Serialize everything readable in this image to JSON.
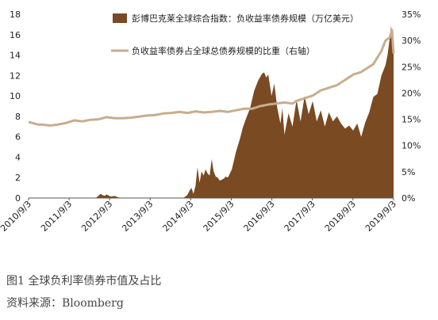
{
  "figure": {
    "title": "图1  全球负利率债券市值及占比",
    "source": "资料来源：Bloomberg"
  },
  "chart_data": {
    "type": "area",
    "title": "",
    "xlabel": "",
    "ylabel": "",
    "ylabel_right": "",
    "x_ticks": [
      "2010/9/3",
      "2011/9/3",
      "2012/9/3",
      "2013/9/3",
      "2014/9/3",
      "2015/9/3",
      "2016/9/3",
      "2017/9/3",
      "2018/9/3",
      "2019/9/3"
    ],
    "y_left": {
      "lim": [
        0,
        18
      ],
      "ticks": [
        "0",
        "2",
        "4",
        "6",
        "8",
        "10",
        "12",
        "14",
        "16",
        "18"
      ]
    },
    "y_right": {
      "lim": [
        0,
        35
      ],
      "ticks": [
        "0%",
        "5%",
        "10%",
        "15%",
        "20%",
        "25%",
        "30%",
        "35%"
      ]
    },
    "grid": false,
    "legend_position": "top",
    "series": [
      {
        "name": "彭博巴克莱全球综合指数：负收益率债券规模（万亿美元）",
        "type": "area",
        "axis": "left",
        "color": "#7a4a22",
        "x": [
          2010.67,
          2011.5,
          2012.0,
          2012.3,
          2012.35,
          2012.45,
          2012.5,
          2012.55,
          2012.6,
          2012.7,
          2012.8,
          2012.9,
          2013.0,
          2013.5,
          2014.0,
          2014.5,
          2014.6,
          2014.65,
          2014.7,
          2014.75,
          2014.8,
          2014.85,
          2014.9,
          2014.95,
          2015.0,
          2015.05,
          2015.1,
          2015.15,
          2015.2,
          2015.25,
          2015.3,
          2015.35,
          2015.4,
          2015.45,
          2015.5,
          2015.55,
          2015.6,
          2015.7,
          2015.8,
          2015.9,
          2015.97,
          2016.05,
          2016.15,
          2016.25,
          2016.35,
          2016.45,
          2016.5,
          2016.55,
          2016.6,
          2016.68,
          2016.75,
          2016.82,
          2016.9,
          2016.95,
          2017.0,
          2017.1,
          2017.2,
          2017.3,
          2017.4,
          2017.5,
          2017.6,
          2017.7,
          2017.8,
          2017.9,
          2018.0,
          2018.1,
          2018.2,
          2018.3,
          2018.4,
          2018.5,
          2018.6,
          2018.7,
          2018.8,
          2018.9,
          2019.0,
          2019.1,
          2019.2,
          2019.3,
          2019.4,
          2019.5,
          2019.55,
          2019.6,
          2019.64,
          2019.66,
          2019.7
        ],
        "values": [
          0,
          0,
          0,
          0,
          0.05,
          0.4,
          0.3,
          0.2,
          0.35,
          0.15,
          0.2,
          0.05,
          0,
          0,
          0,
          0,
          0.3,
          0.7,
          1.0,
          0.4,
          1.2,
          3.0,
          1.5,
          2.6,
          2.2,
          2.8,
          2.4,
          2.2,
          3.8,
          2.6,
          2.1,
          2.0,
          1.7,
          1.8,
          1.9,
          2.1,
          2.0,
          2.8,
          4.5,
          5.8,
          6.9,
          7.8,
          8.8,
          10.5,
          11.5,
          12.2,
          12.3,
          11.8,
          12.1,
          10.0,
          11.2,
          8.9,
          7.3,
          8.8,
          6.2,
          8.3,
          7.0,
          9.6,
          7.5,
          10.0,
          8.2,
          9.5,
          7.5,
          8.6,
          7.0,
          8.4,
          7.5,
          8.0,
          7.3,
          6.8,
          7.1,
          6.6,
          7.3,
          6.0,
          7.4,
          8.4,
          9.9,
          10.2,
          12.0,
          13.0,
          14.0,
          15.5,
          16.9,
          16.0,
          15.5
        ]
      },
      {
        "name": "负收益率债券占全球总债券规模的比重（右轴）",
        "type": "line",
        "axis": "right",
        "color": "#c8ad8d",
        "x": [
          2010.67,
          2010.9,
          2011.0,
          2011.2,
          2011.4,
          2011.6,
          2011.8,
          2012.0,
          2012.2,
          2012.4,
          2012.6,
          2012.8,
          2013.0,
          2013.2,
          2013.4,
          2013.6,
          2013.8,
          2014.0,
          2014.2,
          2014.4,
          2014.6,
          2014.8,
          2015.0,
          2015.2,
          2015.4,
          2015.6,
          2015.8,
          2016.0,
          2016.2,
          2016.4,
          2016.6,
          2016.8,
          2017.0,
          2017.2,
          2017.3,
          2017.5,
          2017.7,
          2017.9,
          2018.1,
          2018.3,
          2018.5,
          2018.7,
          2018.9,
          2019.0,
          2019.2,
          2019.4,
          2019.5,
          2019.6,
          2019.66,
          2019.7
        ],
        "values": [
          14.5,
          14.0,
          14.0,
          13.8,
          14.0,
          14.3,
          14.8,
          14.6,
          14.9,
          15.0,
          15.4,
          15.2,
          15.2,
          15.3,
          15.5,
          15.7,
          15.8,
          16.1,
          16.2,
          16.4,
          16.2,
          16.5,
          16.3,
          16.4,
          16.6,
          16.4,
          16.7,
          17.0,
          17.0,
          17.5,
          17.8,
          18.0,
          18.2,
          18.0,
          18.5,
          19.0,
          19.5,
          20.5,
          21.0,
          21.5,
          22.5,
          23.5,
          24.0,
          24.5,
          25.5,
          28.0,
          30.0,
          30.5,
          32.0,
          27.5
        ]
      }
    ]
  }
}
